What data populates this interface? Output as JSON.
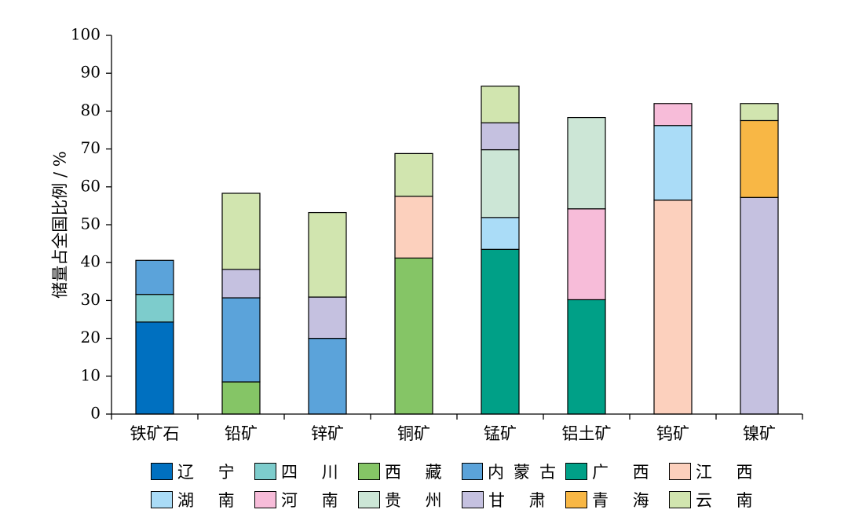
{
  "chart_data": {
    "type": "bar",
    "stacked": true,
    "title": "",
    "xlabel": "",
    "ylabel": "储量占全国比例 / %",
    "ylim": [
      0,
      100
    ],
    "yticks": [
      0,
      10,
      20,
      30,
      40,
      50,
      60,
      70,
      80,
      90,
      100
    ],
    "categories": [
      "铁矿石",
      "铅矿",
      "锌矿",
      "铜矿",
      "锰矿",
      "铝土矿",
      "钨矿",
      "镍矿"
    ],
    "series": [
      {
        "name": "辽 宁",
        "color": "#0070c0",
        "values": [
          24.3,
          0,
          0,
          0,
          0,
          0,
          0,
          0
        ]
      },
      {
        "name": "四 川",
        "color": "#7dcccc",
        "values": [
          7.3,
          0,
          0,
          0,
          0,
          0,
          0,
          0
        ]
      },
      {
        "name": "西 藏",
        "color": "#85c566",
        "values": [
          0,
          8.5,
          0,
          41.2,
          0,
          0,
          0,
          0
        ]
      },
      {
        "name": "内蒙古",
        "color": "#5ba3da",
        "values": [
          9.0,
          22.2,
          20.0,
          0,
          0,
          0,
          0,
          0
        ]
      },
      {
        "name": "广 西",
        "color": "#00a087",
        "values": [
          0,
          0,
          0,
          0,
          43.5,
          30.2,
          0,
          0
        ]
      },
      {
        "name": "江 西",
        "color": "#fcd0bd",
        "values": [
          0,
          0,
          0,
          16.3,
          0,
          0,
          56.5,
          0
        ]
      },
      {
        "name": "湖 南",
        "color": "#aadcf7",
        "values": [
          0,
          0,
          0,
          0,
          8.4,
          0,
          19.7,
          0
        ]
      },
      {
        "name": "河 南",
        "color": "#f7bcd9",
        "values": [
          0,
          0,
          0,
          0,
          0,
          24.0,
          5.8,
          0
        ]
      },
      {
        "name": "贵 州",
        "color": "#cce6d6",
        "values": [
          0,
          0,
          0,
          0,
          17.9,
          24.1,
          0,
          0
        ]
      },
      {
        "name": "甘 肃",
        "color": "#c5c1e0",
        "values": [
          0,
          7.5,
          10.9,
          0,
          7.1,
          0,
          0,
          57.2
        ]
      },
      {
        "name": "青 海",
        "color": "#f8b745",
        "values": [
          0,
          0,
          0,
          0,
          0,
          0,
          0,
          20.3
        ]
      },
      {
        "name": "云 南",
        "color": "#d1e5af",
        "values": [
          0,
          20.1,
          22.3,
          11.3,
          9.7,
          0,
          0,
          4.5
        ]
      }
    ],
    "grid": false,
    "legend_position": "bottom"
  }
}
